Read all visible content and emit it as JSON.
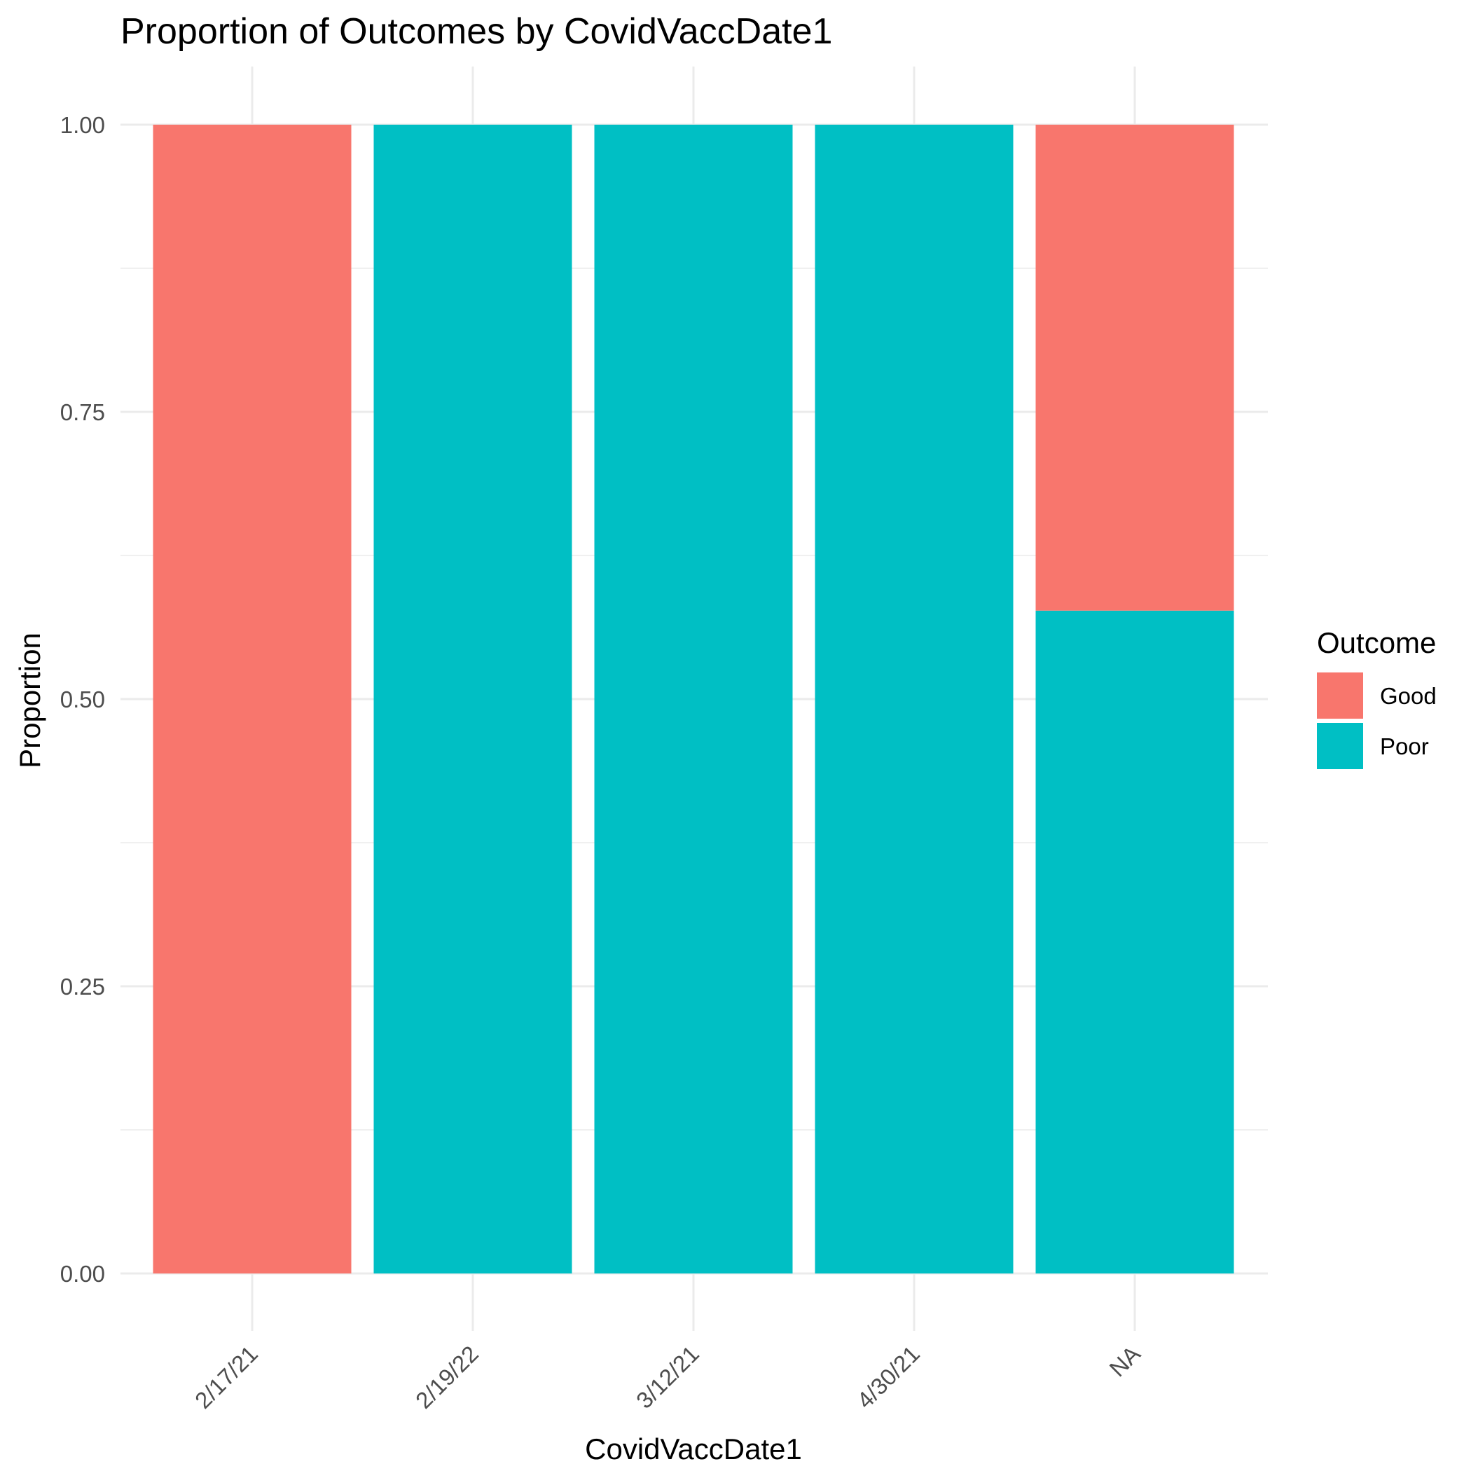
{
  "chart_data": {
    "type": "bar",
    "stacked": true,
    "title": "Proportion of Outcomes by CovidVaccDate1",
    "xlabel": "CovidVaccDate1",
    "ylabel": "Proportion",
    "categories": [
      "2/17/21",
      "2/19/22",
      "3/12/21",
      "4/30/21",
      "NA"
    ],
    "series": [
      {
        "name": "Poor",
        "color": "#00BFC4",
        "values": [
          0,
          1,
          1,
          1,
          0.577
        ]
      },
      {
        "name": "Good",
        "color": "#F8766D",
        "values": [
          1,
          0,
          0,
          0,
          0.423
        ]
      }
    ],
    "ylim": [
      0,
      1
    ],
    "yticks": [
      "0.00",
      "0.25",
      "0.50",
      "0.75",
      "1.00"
    ],
    "grid": true,
    "legend": {
      "title": "Outcome",
      "placement": "right",
      "entries": [
        {
          "label": "Good",
          "color": "#F8766D"
        },
        {
          "label": "Poor",
          "color": "#00BFC4"
        }
      ]
    }
  }
}
